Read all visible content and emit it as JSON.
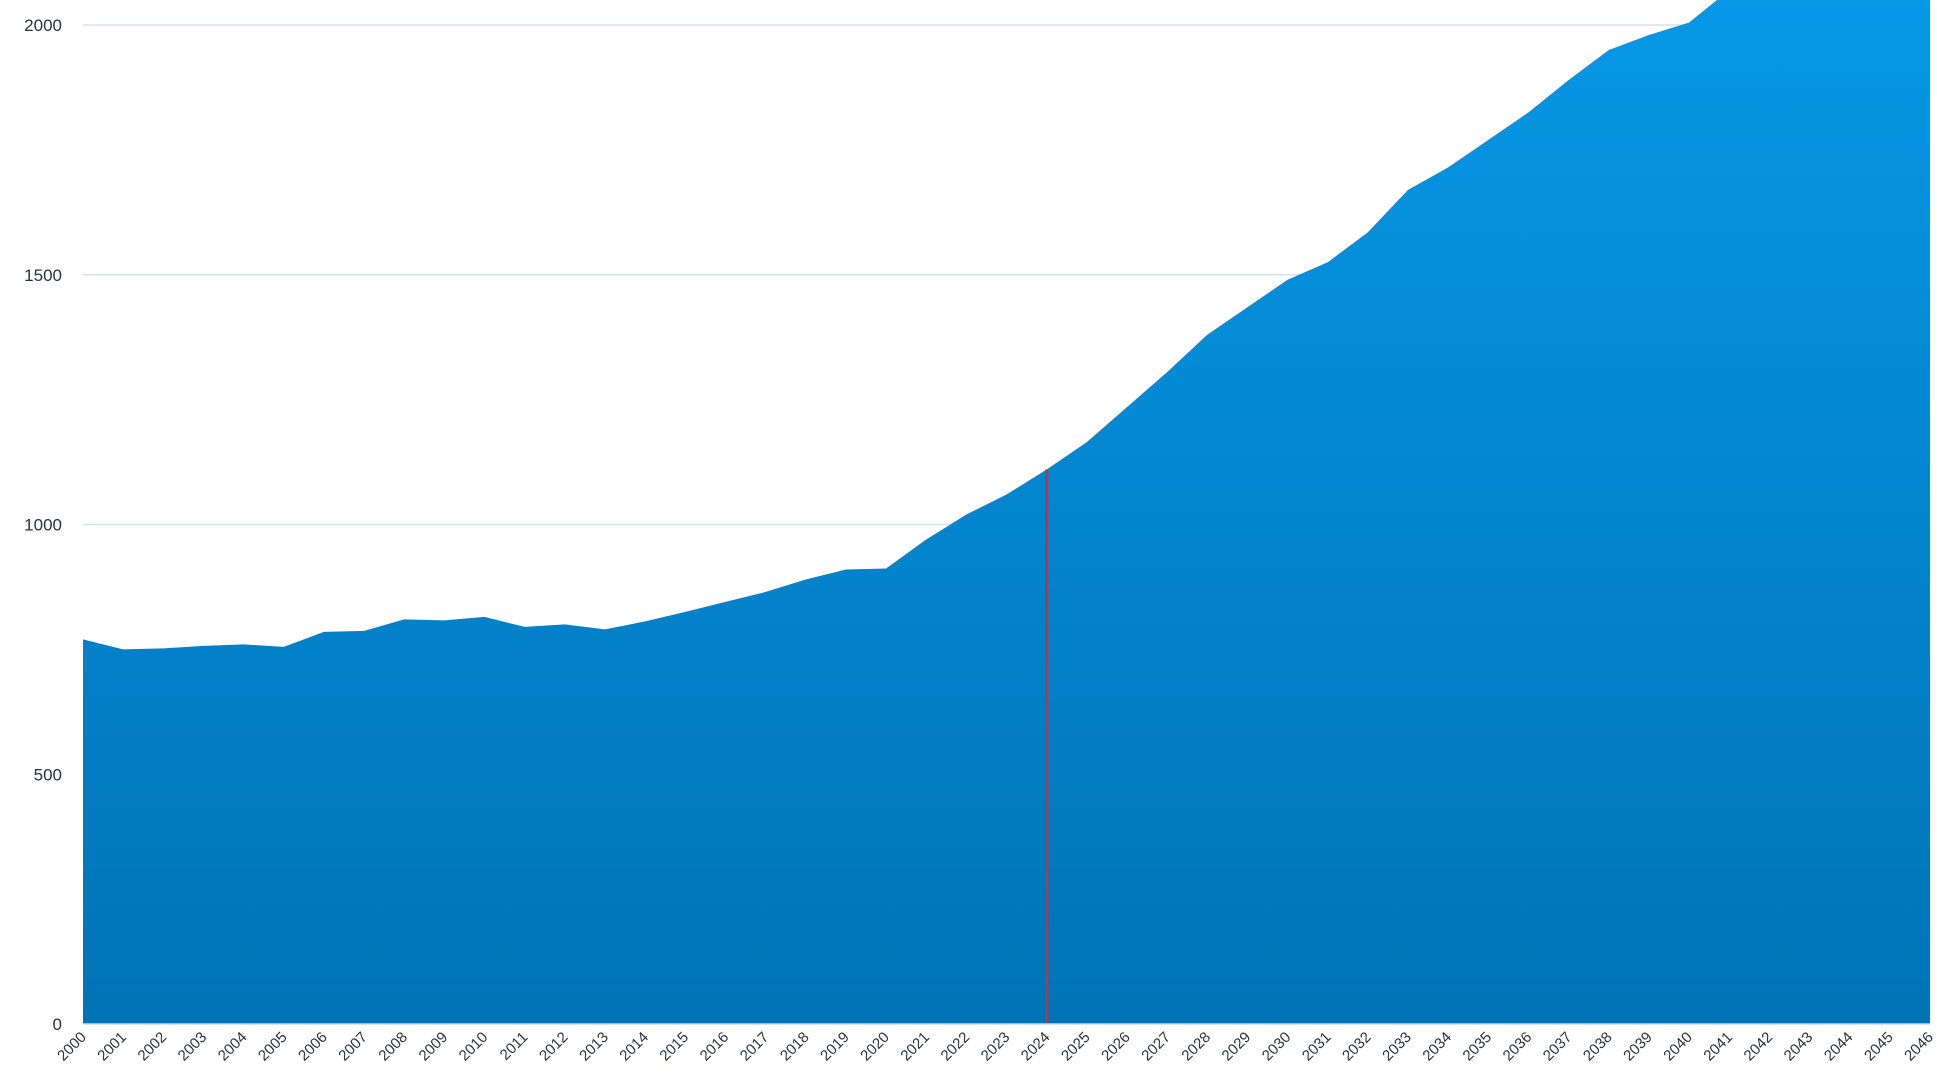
{
  "chart_data": {
    "type": "area",
    "title": "",
    "xlabel": "",
    "ylabel": "",
    "x": [
      "2000",
      "2001",
      "2002",
      "2003",
      "2004",
      "2005",
      "2006",
      "2007",
      "2008",
      "2009",
      "2010",
      "2011",
      "2012",
      "2013",
      "2014",
      "2015",
      "2016",
      "2017",
      "2018",
      "2019",
      "2020",
      "2021",
      "2022",
      "2023",
      "2024",
      "2025",
      "2026",
      "2027",
      "2028",
      "2029",
      "2030",
      "2031",
      "2032",
      "2033",
      "2034",
      "2035",
      "2036",
      "2037",
      "2038",
      "2039",
      "2040",
      "2041",
      "2042",
      "2043",
      "2044",
      "2045",
      "2046"
    ],
    "series": [
      {
        "values": [
          770,
          750,
          752,
          757,
          760,
          755,
          785,
          787,
          810,
          808,
          815,
          795,
          800,
          790,
          806,
          825,
          845,
          865,
          890,
          910,
          912,
          970,
          1020,
          1060,
          1110,
          1165,
          1235,
          1305,
          1380,
          1435,
          1490,
          1525,
          1585,
          1670,
          1715,
          1770,
          1825,
          1890,
          1950,
          1980,
          2005,
          2070,
          2090,
          2100,
          2110,
          2115,
          2120
        ]
      }
    ],
    "yticks": [
      0,
      500,
      1000,
      1500,
      2000
    ],
    "ylim": [
      0,
      2000
    ],
    "grid": true,
    "legend": "none",
    "marker_line": {
      "x": "2024",
      "color": "#b3364b"
    },
    "colors": {
      "area_top": "#0799e8",
      "area_bottom": "#0073b6",
      "gridline": "#d6e3ee",
      "text": "#2a3140"
    }
  }
}
